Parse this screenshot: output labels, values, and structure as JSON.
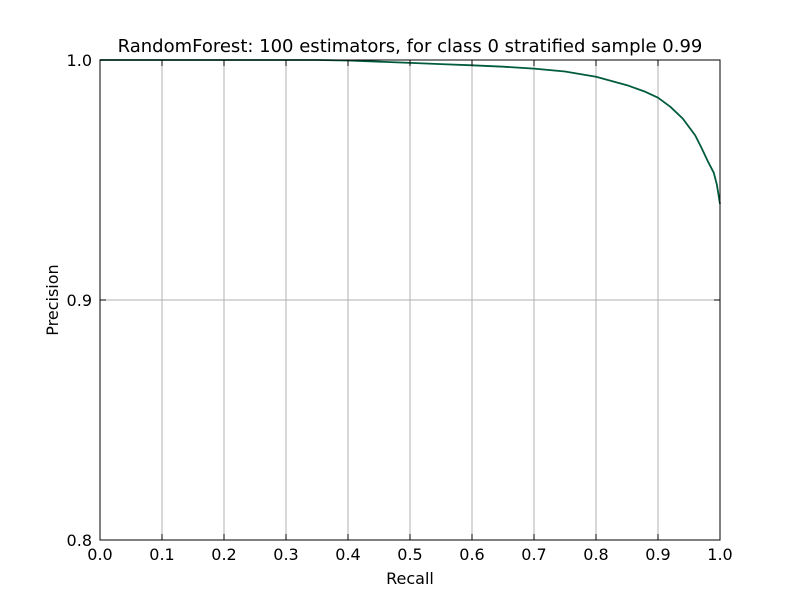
{
  "chart_data": {
    "type": "line",
    "title": "RandomForest: 100 estimators, for class 0 stratified sample 0.99",
    "xlabel": "Recall",
    "ylabel": "Precision",
    "xlim": [
      0.0,
      1.0
    ],
    "ylim": [
      0.8,
      1.0
    ],
    "xticks": [
      "0.0",
      "0.1",
      "0.2",
      "0.3",
      "0.4",
      "0.5",
      "0.6",
      "0.7",
      "0.8",
      "0.9",
      "1.0"
    ],
    "yticks": [
      "0.8",
      "0.9",
      "1.0"
    ],
    "grid": true,
    "series": [
      {
        "color": "#005c3a",
        "x": [
          0.0,
          0.1,
          0.2,
          0.3,
          0.35,
          0.4,
          0.45,
          0.5,
          0.55,
          0.6,
          0.65,
          0.7,
          0.75,
          0.8,
          0.85,
          0.88,
          0.9,
          0.92,
          0.94,
          0.96,
          0.97,
          0.98,
          0.99,
          0.995,
          1.0
        ],
        "y": [
          1.0,
          1.0,
          1.0,
          1.0,
          1.0,
          0.9998,
          0.9993,
          0.9988,
          0.9983,
          0.9978,
          0.9972,
          0.9964,
          0.9952,
          0.993,
          0.9895,
          0.9867,
          0.9843,
          0.9805,
          0.9756,
          0.9686,
          0.9635,
          0.958,
          0.953,
          0.948,
          0.94
        ]
      }
    ]
  }
}
